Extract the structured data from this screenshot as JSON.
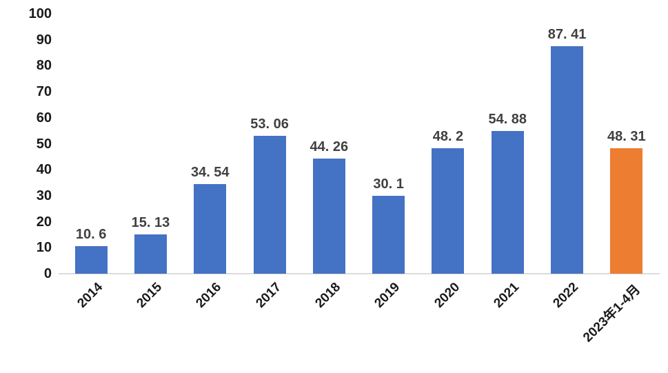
{
  "chart_data": {
    "type": "bar",
    "title": "",
    "xlabel": "",
    "ylabel": "",
    "categories": [
      "2014",
      "2015",
      "2016",
      "2017",
      "2018",
      "2019",
      "2020",
      "2021",
      "2022",
      "2023年1-4月"
    ],
    "values": [
      10.6,
      15.13,
      34.54,
      53.06,
      44.26,
      30.1,
      48.2,
      54.88,
      87.41,
      48.31
    ],
    "data_labels": [
      "10. 6",
      "15. 13",
      "34. 54",
      "53. 06",
      "44. 26",
      "30. 1",
      "48. 2",
      "54. 88",
      "87. 41",
      "48. 31"
    ],
    "point_colors": [
      "#4472C4",
      "#4472C4",
      "#4472C4",
      "#4472C4",
      "#4472C4",
      "#4472C4",
      "#4472C4",
      "#4472C4",
      "#4472C4",
      "#ED7D31"
    ],
    "ylim": [
      0,
      100
    ],
    "yticks": [
      0,
      10,
      20,
      30,
      40,
      50,
      60,
      70,
      80,
      90,
      100
    ],
    "grid": false,
    "legend_position": "none",
    "colors": {
      "bar_default": "#4472C4",
      "bar_highlight": "#ED7D31",
      "axis_line": "#dcdcdc",
      "axis_tick_label": "#1a1a1a",
      "data_label": "#404040"
    }
  }
}
